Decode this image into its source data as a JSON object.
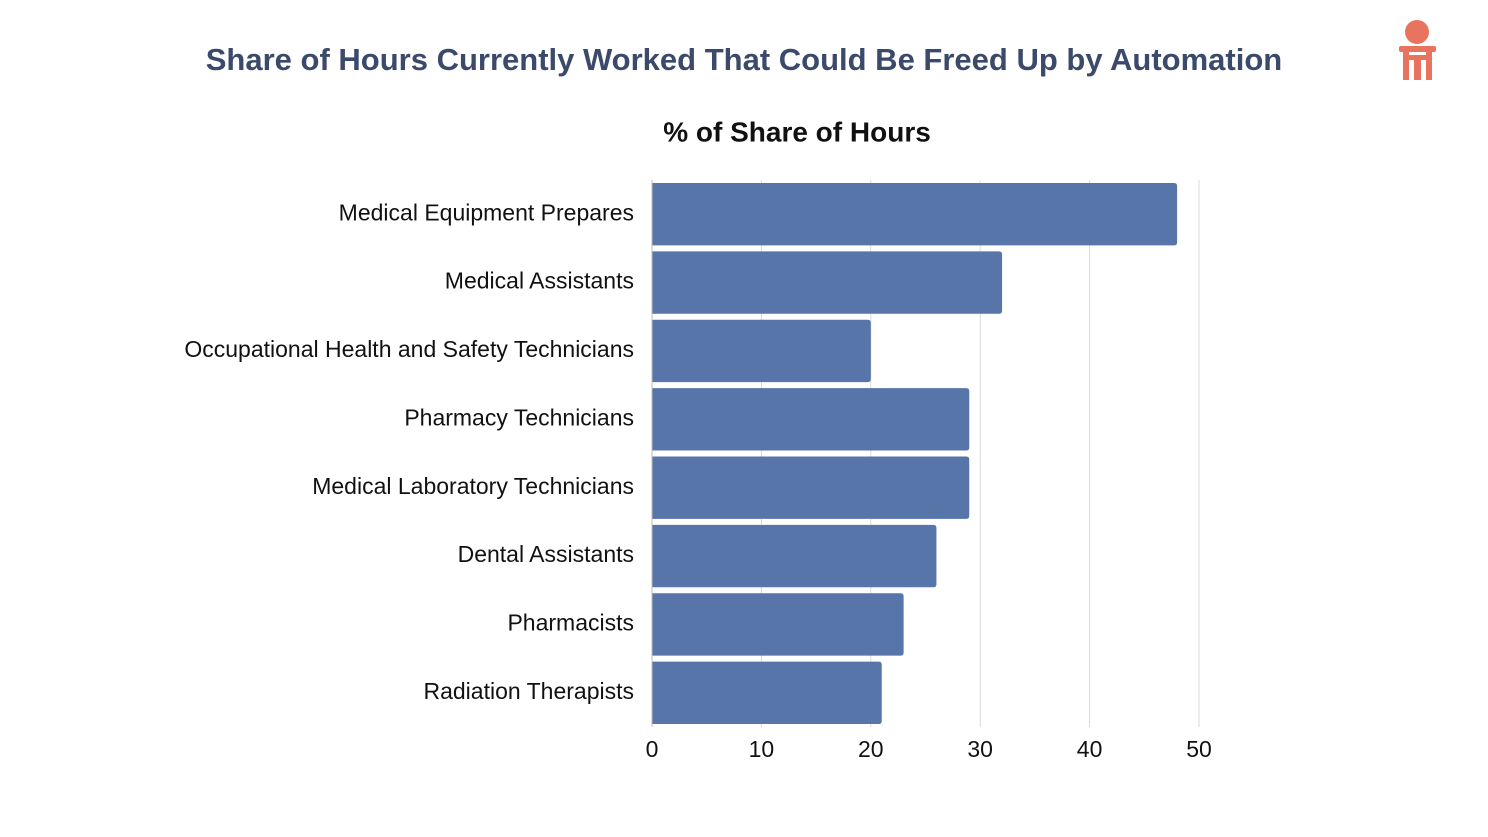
{
  "chart_data": {
    "type": "bar",
    "orientation": "horizontal",
    "title": "Share of Hours Currently Worked That Could Be Freed Up by Automation",
    "subtitle": "% of Share of Hours",
    "categories": [
      "Medical Equipment Prepares",
      "Medical Assistants",
      "Occupational Health and Safety Technicians",
      "Pharmacy Technicians",
      "Medical Laboratory Technicians",
      "Dental Assistants",
      "Pharmacists",
      "Radiation Therapists"
    ],
    "values": [
      48,
      32,
      20,
      29,
      29,
      26,
      23,
      21
    ],
    "color": "#5875aa",
    "xlim": [
      0,
      50
    ],
    "xticks": [
      0,
      10,
      20,
      30,
      40,
      50
    ],
    "grid": true
  }
}
